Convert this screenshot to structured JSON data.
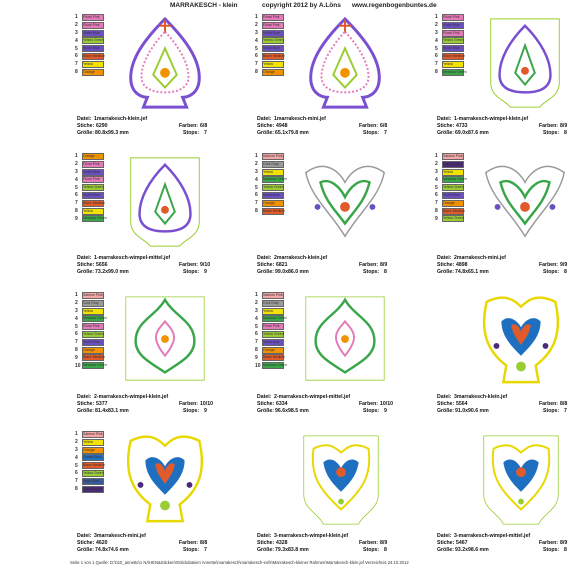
{
  "header": {
    "title": "MARRAKESCH - klein",
    "copyright": "copyright 2012  by  A.Löns",
    "url": "www.regenbogenbuntes.de"
  },
  "labels": {
    "file": "Datei:",
    "stitches": "Stiche:",
    "colors": "Farben:",
    "size": "Größe:",
    "stops": "Stops:"
  },
  "cells": [
    {
      "file": "1marrakesch-klein.jef",
      "stitches": "6290",
      "colors": "6/8",
      "size": "80.8x99.3 mm",
      "stops": "7",
      "threads": [
        {
          "no": "1",
          "name": "Floral Pink",
          "color": "#e47ab8"
        },
        {
          "no": "2",
          "name": "Floral Pink",
          "color": "#e47ab8"
        },
        {
          "no": "3",
          "name": "Violet Blue",
          "color": "#6a4fc0"
        },
        {
          "no": "4",
          "name": "Yellow Green",
          "color": "#9acd32"
        },
        {
          "no": "5",
          "name": "Violet Blue",
          "color": "#6a4fc0"
        },
        {
          "no": "6",
          "name": "Blaze Medium",
          "color": "#e05a2a"
        },
        {
          "no": "7",
          "name": "Yellow",
          "color": "#f2e200"
        },
        {
          "no": "8",
          "name": "Orange",
          "color": "#f39200"
        }
      ]
    },
    {
      "file": "1marrakesch-mini.jef",
      "stitches": "4948",
      "colors": "6/8",
      "size": "65.1x79.8 mm",
      "stops": "7",
      "threads": [
        {
          "no": "1",
          "name": "Floral Pink",
          "color": "#e47ab8"
        },
        {
          "no": "2",
          "name": "Floral Pink",
          "color": "#e47ab8"
        },
        {
          "no": "3",
          "name": "Violet Blue",
          "color": "#6a4fc0"
        },
        {
          "no": "4",
          "name": "Yellow Green",
          "color": "#9acd32"
        },
        {
          "no": "5",
          "name": "Violet Blue",
          "color": "#6a4fc0"
        },
        {
          "no": "6",
          "name": "Blaze Medium",
          "color": "#e05a2a"
        },
        {
          "no": "7",
          "name": "Yellow",
          "color": "#f2e200"
        },
        {
          "no": "8",
          "name": "Orange",
          "color": "#f39200"
        }
      ]
    },
    {
      "file": "1-marrakesch-wimpel-klein.jef",
      "stitches": "4733",
      "colors": "8/9",
      "size": "69.0x87.6 mm",
      "stops": "8",
      "threads": [
        {
          "no": "1",
          "name": "Floral Pink",
          "color": "#e47ab8"
        },
        {
          "no": "2",
          "name": "Violet Blue",
          "color": "#6a4fc0"
        },
        {
          "no": "3",
          "name": "Floral Pink",
          "color": "#e47ab8"
        },
        {
          "no": "4",
          "name": "Yellow Green",
          "color": "#9acd32"
        },
        {
          "no": "5",
          "name": "Violet Blue",
          "color": "#6a4fc0"
        },
        {
          "no": "6",
          "name": "Blaze Medium",
          "color": "#e05a2a"
        },
        {
          "no": "7",
          "name": "Yellow",
          "color": "#f2e200"
        },
        {
          "no": "8",
          "name": "Meadow Green",
          "color": "#3aa64a"
        }
      ]
    },
    {
      "file": "1-marrakesch-wimpel-mittel.jef",
      "stitches": "5656",
      "colors": "9/10",
      "size": "73.2x99.0 mm",
      "stops": "9",
      "threads": [
        {
          "no": "1",
          "name": "Orange",
          "color": "#f39200"
        },
        {
          "no": "2",
          "name": "Floral Pink",
          "color": "#e47ab8"
        },
        {
          "no": "3",
          "name": "Violet Blue",
          "color": "#6a4fc0"
        },
        {
          "no": "4",
          "name": "Floral Pink",
          "color": "#e47ab8"
        },
        {
          "no": "5",
          "name": "Yellow Green",
          "color": "#9acd32"
        },
        {
          "no": "6",
          "name": "Violet Blue",
          "color": "#6a4fc0"
        },
        {
          "no": "7",
          "name": "Blaze Medium",
          "color": "#e05a2a"
        },
        {
          "no": "8",
          "name": "Yellow",
          "color": "#f2e200"
        },
        {
          "no": "9",
          "name": "Meadow Green",
          "color": "#3aa64a"
        }
      ]
    },
    {
      "file": "2marrakesch-klein.jef",
      "stitches": "6821",
      "colors": "8/9",
      "size": "99.0x86.0 mm",
      "stops": "8",
      "threads": [
        {
          "no": "1",
          "name": "Salmon Pink",
          "color": "#f4a6a6"
        },
        {
          "no": "2",
          "name": "Cool Gray",
          "color": "#9a9a9a"
        },
        {
          "no": "3",
          "name": "Yellow",
          "color": "#f2e200"
        },
        {
          "no": "4",
          "name": "Meadow Green",
          "color": "#3aa64a"
        },
        {
          "no": "5",
          "name": "Yellow Green",
          "color": "#9acd32"
        },
        {
          "no": "6",
          "name": "Violet Blue",
          "color": "#6a4fc0"
        },
        {
          "no": "7",
          "name": "Orange",
          "color": "#f39200"
        },
        {
          "no": "8",
          "name": "Blaze Medium",
          "color": "#e05a2a"
        }
      ]
    },
    {
      "file": "2marrakesch-mini.jef",
      "stitches": "4898",
      "colors": "9/9",
      "size": "74.8x65.1 mm",
      "stops": "8",
      "threads": [
        {
          "no": "1",
          "name": "Salmon Pink",
          "color": "#f4a6a6"
        },
        {
          "no": "2",
          "name": "Navy Purple",
          "color": "#4b2a7a"
        },
        {
          "no": "3",
          "name": "Yellow",
          "color": "#f2e200"
        },
        {
          "no": "4",
          "name": "Meadow Green",
          "color": "#3aa64a"
        },
        {
          "no": "5",
          "name": "Yellow Green",
          "color": "#9acd32"
        },
        {
          "no": "6",
          "name": "Violet Blue",
          "color": "#6a4fc0"
        },
        {
          "no": "7",
          "name": "Orange",
          "color": "#f39200"
        },
        {
          "no": "8",
          "name": "Blaze Medium",
          "color": "#e05a2a"
        },
        {
          "no": "9",
          "name": "Yellow Green",
          "color": "#9acd32"
        }
      ]
    },
    {
      "file": "2-marrakesch-wimpel-klein.jef",
      "stitches": "5377",
      "colors": "10/10",
      "size": "81.4x83.1 mm",
      "stops": "9",
      "threads": [
        {
          "no": "1",
          "name": "Salmon Pink",
          "color": "#f4a6a6"
        },
        {
          "no": "2",
          "name": "Cool Gray",
          "color": "#9a9a9a"
        },
        {
          "no": "3",
          "name": "Yellow",
          "color": "#f2e200"
        },
        {
          "no": "4",
          "name": "Meadow Green",
          "color": "#3aa64a"
        },
        {
          "no": "5",
          "name": "Floral Pink",
          "color": "#e47ab8"
        },
        {
          "no": "6",
          "name": "Yellow Green",
          "color": "#9acd32"
        },
        {
          "no": "7",
          "name": "Violet Blue",
          "color": "#6a4fc0"
        },
        {
          "no": "8",
          "name": "Orange",
          "color": "#f39200"
        },
        {
          "no": "9",
          "name": "Blaze Medium",
          "color": "#e05a2a"
        },
        {
          "no": "10",
          "name": "Meadow Green",
          "color": "#3aa64a"
        }
      ]
    },
    {
      "file": "2-marrakesch-wimpel-mittel.jef",
      "stitches": "6334",
      "colors": "10/10",
      "size": "96.6x98.5 mm",
      "stops": "9",
      "threads": [
        {
          "no": "1",
          "name": "Salmon Pink",
          "color": "#f4a6a6"
        },
        {
          "no": "2",
          "name": "Cool Gray",
          "color": "#9a9a9a"
        },
        {
          "no": "3",
          "name": "Yellow",
          "color": "#f2e200"
        },
        {
          "no": "4",
          "name": "Meadow Green",
          "color": "#3aa64a"
        },
        {
          "no": "5",
          "name": "Floral Pink",
          "color": "#e47ab8"
        },
        {
          "no": "6",
          "name": "Yellow Green",
          "color": "#9acd32"
        },
        {
          "no": "7",
          "name": "Violet Blue",
          "color": "#6a4fc0"
        },
        {
          "no": "8",
          "name": "Orange",
          "color": "#f39200"
        },
        {
          "no": "9",
          "name": "Blaze Medium",
          "color": "#e05a2a"
        },
        {
          "no": "10",
          "name": "Meadow Green",
          "color": "#3aa64a"
        }
      ]
    },
    {
      "file": "3marrakesch-klein.jef",
      "stitches": "5564",
      "colors": "8/8",
      "size": "91.0x90.6 mm",
      "stops": "7",
      "threads": []
    },
    {
      "file": "3marrakesch-mini.jef",
      "stitches": "4620",
      "colors": "8/8",
      "size": "74.8x74.6 mm",
      "stops": "7",
      "threads": [
        {
          "no": "1",
          "name": "Salmon Pink",
          "color": "#f4a6a6"
        },
        {
          "no": "2",
          "name": "Yellow",
          "color": "#f2e200"
        },
        {
          "no": "3",
          "name": "Orange",
          "color": "#f39200"
        },
        {
          "no": "4",
          "name": "Ocean Blue",
          "color": "#1f6fc0"
        },
        {
          "no": "5",
          "name": "Blaze Medium",
          "color": "#e05a2a"
        },
        {
          "no": "6",
          "name": "Yellow Green",
          "color": "#9acd32"
        },
        {
          "no": "7",
          "name": "Slate Blue",
          "color": "#3a5aa0"
        },
        {
          "no": "8",
          "name": "Navy Purple",
          "color": "#4b2a7a"
        }
      ]
    },
    {
      "file": "3-marrakesch-wimpel-klein.jef",
      "stitches": "4328",
      "colors": "8/9",
      "size": "79.3x83.8 mm",
      "stops": "8",
      "threads": []
    },
    {
      "file": "3-marrakesch-wimpel-mittel.jef",
      "stitches": "5467",
      "colors": "8/9",
      "size": "93.2x98.6 mm",
      "stops": "8",
      "threads": []
    }
  ],
  "footer": "Seite 1 von 1   Quelle: D:\\010_annette\\1 NÄHEN&Sticken\\0Stickdateien Annette\\marrakesch\\marrakesch-eofs\\Marrakesch-kleiner Rahmen\\Marrakesch-klein.jef   Verzeichnis 24.10.2012"
}
